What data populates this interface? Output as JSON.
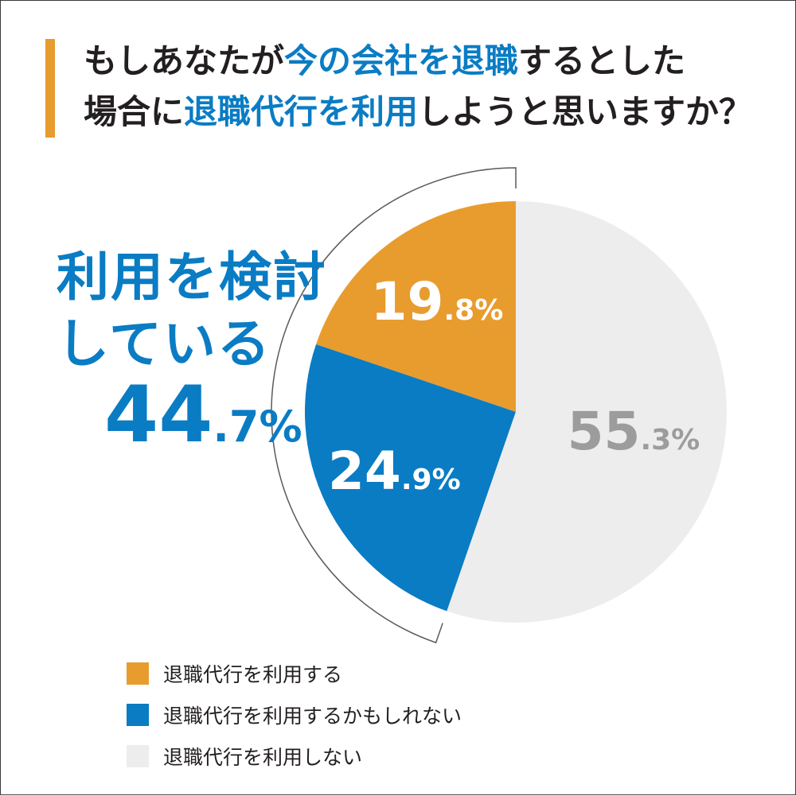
{
  "title": {
    "line1": [
      {
        "text": "もしあなたが",
        "highlight": false
      },
      {
        "text": "今の会社を退職",
        "highlight": true
      },
      {
        "text": "するとした",
        "highlight": false
      }
    ],
    "line2": [
      {
        "text": "場合に",
        "highlight": false
      },
      {
        "text": "退職代行を利用",
        "highlight": true
      },
      {
        "text": "しようと思いますか？",
        "highlight": false
      }
    ]
  },
  "callout": {
    "line1": "利用を検討",
    "line2": "している",
    "value_int": "44",
    "value_dec": ".7%"
  },
  "colors": {
    "accent_orange": "#E89C2E",
    "accent_blue": "#0A7CC4",
    "light_gray": "#EDEDED",
    "gray_text": "#9C9C9C",
    "text_dark": "#231f20"
  },
  "chart_data": {
    "type": "pie",
    "slices": [
      {
        "label": "退職代行を利用する",
        "value": 19.8,
        "display_int": "19",
        "display_dec": ".8%",
        "color": "#E89C2E",
        "text_color": "#FFFFFF"
      },
      {
        "label": "退職代行を利用するかもしれない",
        "value": 24.9,
        "display_int": "24",
        "display_dec": ".9%",
        "color": "#0A7CC4",
        "text_color": "#FFFFFF"
      },
      {
        "label": "退職代行を利用しない",
        "value": 55.3,
        "display_int": "55",
        "display_dec": ".3%",
        "color": "#EDEDED",
        "text_color": "#9C9C9C"
      }
    ],
    "start_angle_deg": 0,
    "direction": "counterclockwise",
    "bracket_covers": [
      0,
      1
    ]
  }
}
